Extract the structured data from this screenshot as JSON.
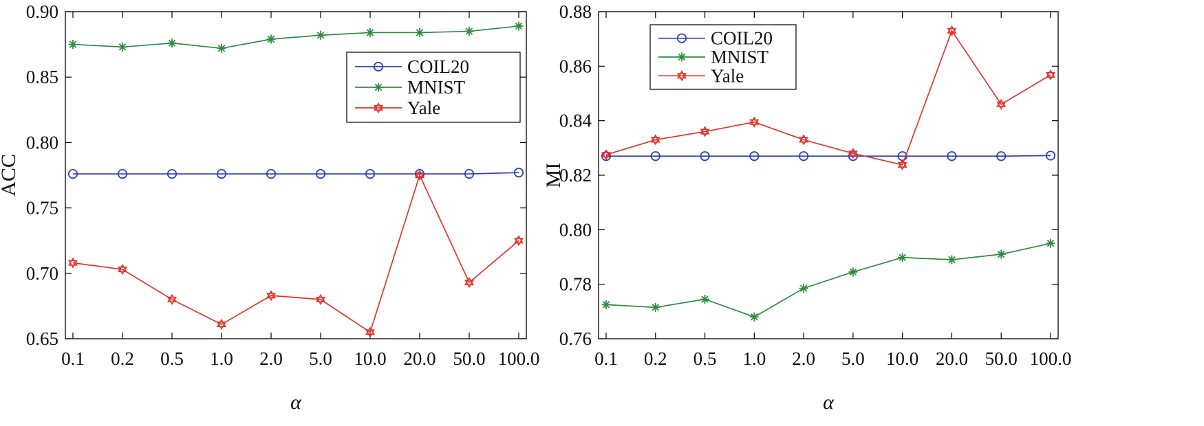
{
  "chart_data": [
    {
      "type": "line",
      "title": "",
      "xlabel": "α",
      "ylabel": "ACC",
      "categories": [
        "0.1",
        "0.2",
        "0.5",
        "1.0",
        "2.0",
        "5.0",
        "10.0",
        "20.0",
        "50.0",
        "100.0"
      ],
      "ylim": [
        0.65,
        0.9
      ],
      "yticks": [
        0.65,
        0.7,
        0.75,
        0.8,
        0.85,
        0.9
      ],
      "ytick_labels": [
        "0.65",
        "0.70",
        "0.75",
        "0.80",
        "0.85",
        "0.90"
      ],
      "legend_position": "upper-right",
      "series": [
        {
          "name": "COIL20",
          "color": "#2b3fbf",
          "marker": "circle",
          "values": [
            0.776,
            0.776,
            0.776,
            0.776,
            0.776,
            0.776,
            0.776,
            0.776,
            0.776,
            0.777
          ]
        },
        {
          "name": "MNIST",
          "color": "#2e8b3e",
          "marker": "star",
          "values": [
            0.875,
            0.873,
            0.876,
            0.872,
            0.879,
            0.882,
            0.884,
            0.884,
            0.885,
            0.889
          ]
        },
        {
          "name": "Yale",
          "color": "#e3342a",
          "marker": "hexagram",
          "values": [
            0.708,
            0.703,
            0.68,
            0.661,
            0.683,
            0.68,
            0.655,
            0.775,
            0.693,
            0.725
          ]
        }
      ]
    },
    {
      "type": "line",
      "title": "",
      "xlabel": "α",
      "ylabel": "MI",
      "categories": [
        "0.1",
        "0.2",
        "0.5",
        "1.0",
        "2.0",
        "5.0",
        "10.0",
        "20.0",
        "50.0",
        "100.0"
      ],
      "ylim": [
        0.76,
        0.88
      ],
      "yticks": [
        0.76,
        0.78,
        0.8,
        0.82,
        0.84,
        0.86,
        0.88
      ],
      "ytick_labels": [
        "0.76",
        "0.78",
        "0.80",
        "0.82",
        "0.84",
        "0.86",
        "0.88"
      ],
      "legend_position": "upper-left",
      "series": [
        {
          "name": "COIL20",
          "color": "#2b3fbf",
          "marker": "circle",
          "values": [
            0.827,
            0.827,
            0.827,
            0.827,
            0.827,
            0.827,
            0.827,
            0.827,
            0.827,
            0.8272
          ]
        },
        {
          "name": "MNIST",
          "color": "#2e8b3e",
          "marker": "star",
          "values": [
            0.7725,
            0.7715,
            0.7745,
            0.768,
            0.7785,
            0.7845,
            0.7898,
            0.789,
            0.791,
            0.795
          ]
        },
        {
          "name": "Yale",
          "color": "#e3342a",
          "marker": "hexagram",
          "values": [
            0.8275,
            0.833,
            0.836,
            0.8395,
            0.833,
            0.828,
            0.8238,
            0.873,
            0.846,
            0.8568
          ]
        }
      ]
    }
  ]
}
